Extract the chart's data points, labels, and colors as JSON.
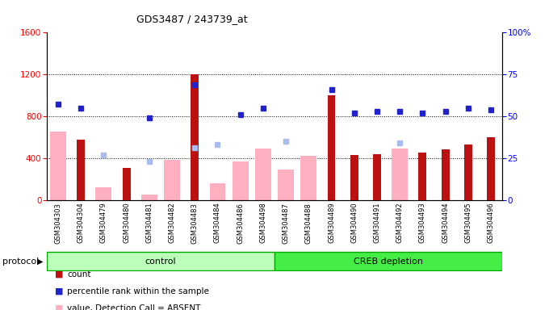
{
  "title": "GDS3487 / 243739_at",
  "samples": [
    "GSM304303",
    "GSM304304",
    "GSM304479",
    "GSM304480",
    "GSM304481",
    "GSM304482",
    "GSM304483",
    "GSM304484",
    "GSM304486",
    "GSM304498",
    "GSM304487",
    "GSM304488",
    "GSM304489",
    "GSM304490",
    "GSM304491",
    "GSM304492",
    "GSM304493",
    "GSM304494",
    "GSM304495",
    "GSM304496"
  ],
  "count_values": [
    0,
    580,
    0,
    310,
    0,
    0,
    1200,
    0,
    0,
    0,
    0,
    0,
    1000,
    430,
    440,
    0,
    450,
    480,
    530,
    600
  ],
  "count_visible": [
    false,
    true,
    false,
    true,
    false,
    false,
    true,
    false,
    false,
    false,
    false,
    false,
    true,
    true,
    true,
    false,
    true,
    true,
    true,
    true
  ],
  "rank_pct": [
    57,
    55,
    0,
    0,
    49,
    0,
    69,
    0,
    51,
    55,
    0,
    0,
    66,
    52,
    53,
    53,
    52,
    53,
    55,
    54
  ],
  "rank_present": [
    true,
    true,
    false,
    false,
    true,
    false,
    true,
    false,
    true,
    true,
    false,
    false,
    true,
    true,
    true,
    true,
    true,
    true,
    true,
    true
  ],
  "value_absent": [
    650,
    0,
    120,
    0,
    55,
    380,
    0,
    160,
    370,
    490,
    290,
    420,
    0,
    0,
    0,
    490,
    0,
    0,
    0,
    0
  ],
  "rank_absent_pct": [
    0,
    0,
    27,
    0,
    23,
    0,
    31,
    33,
    0,
    0,
    35,
    0,
    0,
    0,
    0,
    34,
    0,
    0,
    0,
    0
  ],
  "group_control_count": 10,
  "ylim_left": [
    0,
    1600
  ],
  "ylim_right": [
    0,
    100
  ],
  "left_ticks": [
    0,
    400,
    800,
    1200,
    1600
  ],
  "right_ticks": [
    0,
    25,
    50,
    75,
    100
  ],
  "count_color": "#BB1111",
  "rank_color": "#2222CC",
  "value_absent_color": "#FFB0C0",
  "rank_absent_color": "#AABBEE",
  "control_group_color": "#BBFFBB",
  "creb_group_color": "#44EE44",
  "protocol_label": "protocol",
  "group1_label": "control",
  "group2_label": "CREB depletion",
  "bg_color": "#E8E8E8"
}
